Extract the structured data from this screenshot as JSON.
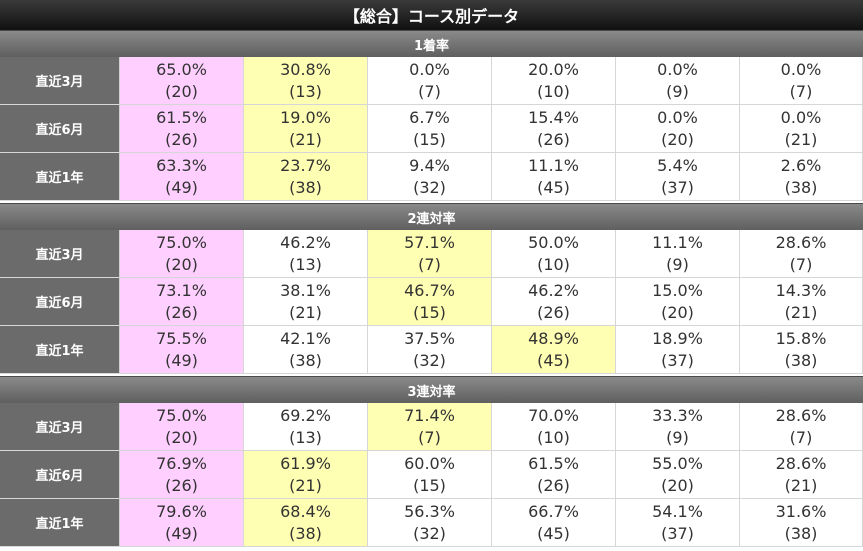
{
  "title": "【総合】コース別データ",
  "colors": {
    "pink": "#ffd0ff",
    "yellow": "#ffffb3",
    "label_bg": "#6b6b6b"
  },
  "sections": [
    {
      "name": "1着率",
      "rows": [
        {
          "label": "直近3月",
          "cells": [
            {
              "pct": "65.0%",
              "n": "(20)",
              "hl": "pink"
            },
            {
              "pct": "30.8%",
              "n": "(13)",
              "hl": "yellow"
            },
            {
              "pct": "0.0%",
              "n": "(7)",
              "hl": ""
            },
            {
              "pct": "20.0%",
              "n": "(10)",
              "hl": ""
            },
            {
              "pct": "0.0%",
              "n": "(9)",
              "hl": ""
            },
            {
              "pct": "0.0%",
              "n": "(7)",
              "hl": ""
            }
          ]
        },
        {
          "label": "直近6月",
          "cells": [
            {
              "pct": "61.5%",
              "n": "(26)",
              "hl": "pink"
            },
            {
              "pct": "19.0%",
              "n": "(21)",
              "hl": "yellow"
            },
            {
              "pct": "6.7%",
              "n": "(15)",
              "hl": ""
            },
            {
              "pct": "15.4%",
              "n": "(26)",
              "hl": ""
            },
            {
              "pct": "0.0%",
              "n": "(20)",
              "hl": ""
            },
            {
              "pct": "0.0%",
              "n": "(21)",
              "hl": ""
            }
          ]
        },
        {
          "label": "直近1年",
          "cells": [
            {
              "pct": "63.3%",
              "n": "(49)",
              "hl": "pink"
            },
            {
              "pct": "23.7%",
              "n": "(38)",
              "hl": "yellow"
            },
            {
              "pct": "9.4%",
              "n": "(32)",
              "hl": ""
            },
            {
              "pct": "11.1%",
              "n": "(45)",
              "hl": ""
            },
            {
              "pct": "5.4%",
              "n": "(37)",
              "hl": ""
            },
            {
              "pct": "2.6%",
              "n": "(38)",
              "hl": ""
            }
          ]
        }
      ]
    },
    {
      "name": "2連対率",
      "rows": [
        {
          "label": "直近3月",
          "cells": [
            {
              "pct": "75.0%",
              "n": "(20)",
              "hl": "pink"
            },
            {
              "pct": "46.2%",
              "n": "(13)",
              "hl": ""
            },
            {
              "pct": "57.1%",
              "n": "(7)",
              "hl": "yellow"
            },
            {
              "pct": "50.0%",
              "n": "(10)",
              "hl": ""
            },
            {
              "pct": "11.1%",
              "n": "(9)",
              "hl": ""
            },
            {
              "pct": "28.6%",
              "n": "(7)",
              "hl": ""
            }
          ]
        },
        {
          "label": "直近6月",
          "cells": [
            {
              "pct": "73.1%",
              "n": "(26)",
              "hl": "pink"
            },
            {
              "pct": "38.1%",
              "n": "(21)",
              "hl": ""
            },
            {
              "pct": "46.7%",
              "n": "(15)",
              "hl": "yellow"
            },
            {
              "pct": "46.2%",
              "n": "(26)",
              "hl": ""
            },
            {
              "pct": "15.0%",
              "n": "(20)",
              "hl": ""
            },
            {
              "pct": "14.3%",
              "n": "(21)",
              "hl": ""
            }
          ]
        },
        {
          "label": "直近1年",
          "cells": [
            {
              "pct": "75.5%",
              "n": "(49)",
              "hl": "pink"
            },
            {
              "pct": "42.1%",
              "n": "(38)",
              "hl": ""
            },
            {
              "pct": "37.5%",
              "n": "(32)",
              "hl": ""
            },
            {
              "pct": "48.9%",
              "n": "(45)",
              "hl": "yellow"
            },
            {
              "pct": "18.9%",
              "n": "(37)",
              "hl": ""
            },
            {
              "pct": "15.8%",
              "n": "(38)",
              "hl": ""
            }
          ]
        }
      ]
    },
    {
      "name": "3連対率",
      "rows": [
        {
          "label": "直近3月",
          "cells": [
            {
              "pct": "75.0%",
              "n": "(20)",
              "hl": "pink"
            },
            {
              "pct": "69.2%",
              "n": "(13)",
              "hl": ""
            },
            {
              "pct": "71.4%",
              "n": "(7)",
              "hl": "yellow"
            },
            {
              "pct": "70.0%",
              "n": "(10)",
              "hl": ""
            },
            {
              "pct": "33.3%",
              "n": "(9)",
              "hl": ""
            },
            {
              "pct": "28.6%",
              "n": "(7)",
              "hl": ""
            }
          ]
        },
        {
          "label": "直近6月",
          "cells": [
            {
              "pct": "76.9%",
              "n": "(26)",
              "hl": "pink"
            },
            {
              "pct": "61.9%",
              "n": "(21)",
              "hl": "yellow"
            },
            {
              "pct": "60.0%",
              "n": "(15)",
              "hl": ""
            },
            {
              "pct": "61.5%",
              "n": "(26)",
              "hl": ""
            },
            {
              "pct": "55.0%",
              "n": "(20)",
              "hl": ""
            },
            {
              "pct": "28.6%",
              "n": "(21)",
              "hl": ""
            }
          ]
        },
        {
          "label": "直近1年",
          "cells": [
            {
              "pct": "79.6%",
              "n": "(49)",
              "hl": "pink"
            },
            {
              "pct": "68.4%",
              "n": "(38)",
              "hl": "yellow"
            },
            {
              "pct": "56.3%",
              "n": "(32)",
              "hl": ""
            },
            {
              "pct": "66.7%",
              "n": "(45)",
              "hl": ""
            },
            {
              "pct": "54.1%",
              "n": "(37)",
              "hl": ""
            },
            {
              "pct": "31.6%",
              "n": "(38)",
              "hl": ""
            }
          ]
        }
      ]
    }
  ]
}
